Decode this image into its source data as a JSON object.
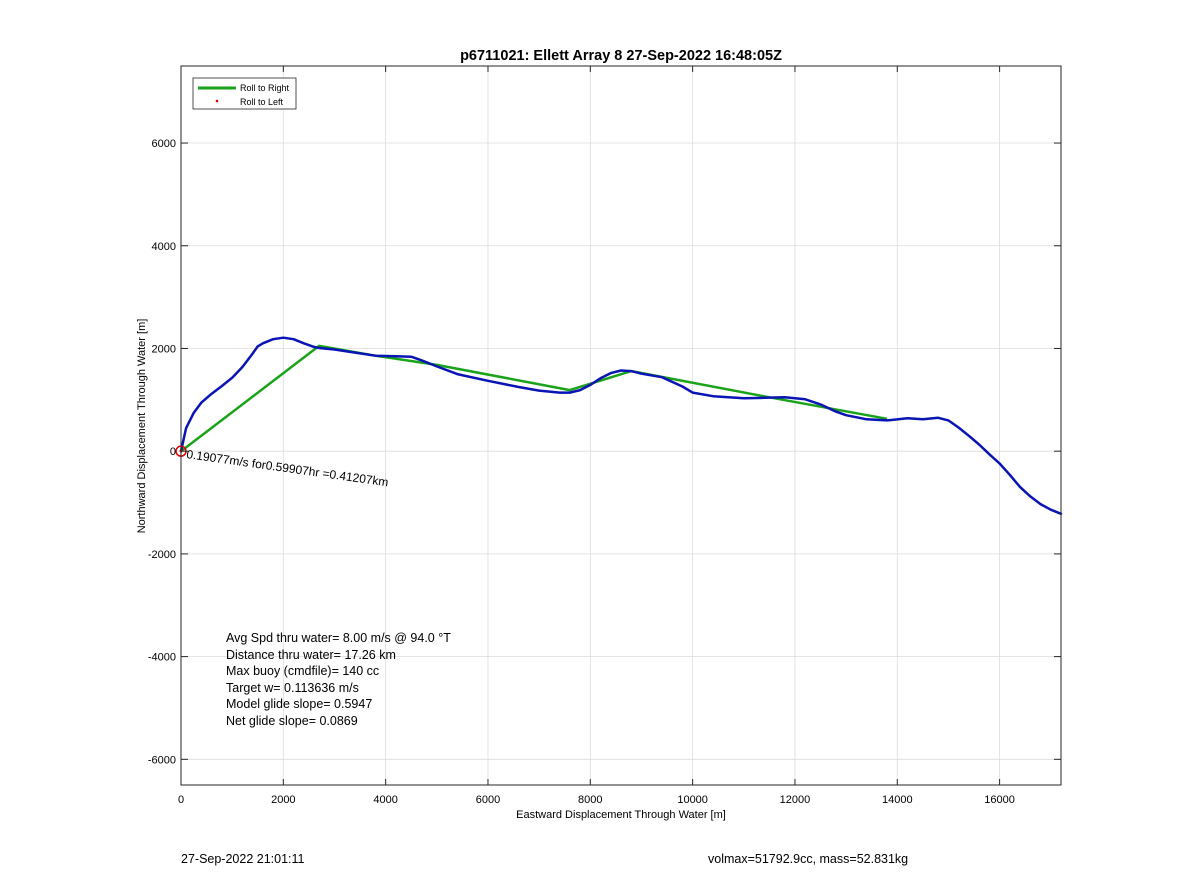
{
  "colors": {
    "track": "#0a14b4",
    "roll_right": "#1aa31a",
    "roll_left": "#e00000",
    "grid": "#dcdcdc",
    "axes": "#262626"
  },
  "footer": {
    "timestamp": "27-Sep-2022 21:01:11",
    "summary": "volmax=51792.9cc, mass=52.831kg"
  },
  "chart_data": {
    "type": "line",
    "title": "p6711021: Ellett Array 8 27-Sep-2022 16:48:05Z",
    "xlabel": "Eastward Displacement Through Water [m]",
    "ylabel": "Northward Displacement Through Water [m]",
    "xlim": [
      0,
      17200
    ],
    "ylim": [
      -6500,
      7500
    ],
    "xticks": [
      0,
      2000,
      4000,
      6000,
      8000,
      10000,
      12000,
      14000,
      16000
    ],
    "yticks": [
      -6000,
      -4000,
      -2000,
      0,
      2000,
      4000,
      6000
    ],
    "grid": true,
    "legend": {
      "position": "top-left",
      "entries": [
        "Roll to Right",
        "Roll to Left"
      ]
    },
    "series": [
      {
        "name": "Roll to Right",
        "style": "line",
        "x": [
          0,
          2700,
          3800,
          5000,
          7600,
          8800,
          11500,
          13800
        ],
        "y": [
          0,
          2050,
          1860,
          1680,
          1190,
          1560,
          1050,
          630
        ]
      },
      {
        "name": "Roll to Left",
        "style": "marker",
        "x": [
          0
        ],
        "y": [
          0
        ]
      },
      {
        "style": "line",
        "x": [
          0,
          100,
          250,
          400,
          600,
          800,
          1000,
          1200,
          1400,
          1500,
          1600,
          1800,
          2000,
          2200,
          2400,
          2600,
          2700,
          3000,
          3400,
          3800,
          4200,
          4500,
          4700,
          5000,
          5400,
          6000,
          6600,
          7000,
          7400,
          7600,
          7800,
          8000,
          8200,
          8400,
          8600,
          8800,
          9000,
          9400,
          9800,
          10000,
          10400,
          11000,
          11400,
          11800,
          12200,
          12500,
          12800,
          13000,
          13400,
          13800,
          14200,
          14500,
          14800,
          15000,
          15200,
          15400,
          15600,
          15800,
          16000,
          16200,
          16400,
          16600,
          16800,
          17000,
          17200
        ],
        "y": [
          0,
          450,
          750,
          950,
          1120,
          1270,
          1430,
          1640,
          1900,
          2040,
          2100,
          2180,
          2210,
          2180,
          2100,
          2030,
          2010,
          1980,
          1920,
          1860,
          1850,
          1840,
          1770,
          1650,
          1500,
          1370,
          1250,
          1180,
          1140,
          1140,
          1190,
          1290,
          1420,
          1520,
          1570,
          1560,
          1510,
          1440,
          1260,
          1140,
          1070,
          1030,
          1040,
          1050,
          1010,
          910,
          770,
          700,
          620,
          600,
          640,
          620,
          650,
          600,
          460,
          300,
          130,
          -60,
          -240,
          -460,
          -700,
          -880,
          -1030,
          -1140,
          -1220
        ]
      }
    ],
    "annotations": [
      {
        "text": "0.19077m/s for0.59907hr =0.41207km",
        "x": 0,
        "y": 0,
        "rotation_deg": -8
      },
      {
        "text": "Avg Spd thru water=  8.00 m/s @  94.0 °T"
      },
      {
        "text": "Distance thru water= 17.26 km"
      },
      {
        "text": "Max buoy (cmdfile)= 140 cc"
      },
      {
        "text": "Target w= 0.113636 m/s"
      },
      {
        "text": "Model glide slope= 0.5947"
      },
      {
        "text": "Net glide slope= 0.0869"
      }
    ]
  }
}
